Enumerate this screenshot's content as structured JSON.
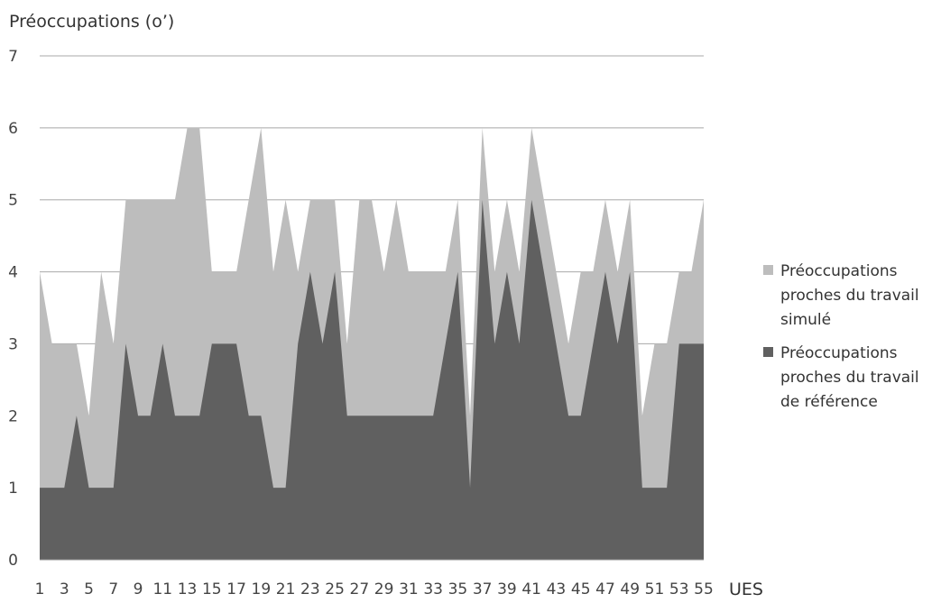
{
  "chart_data": {
    "type": "area",
    "stacked": false,
    "ylabel": "Préoccupations (o’)",
    "xlabel": "UES",
    "ylim": [
      0,
      7
    ],
    "yticks": [
      0,
      1,
      2,
      3,
      4,
      5,
      6,
      7
    ],
    "grid": true,
    "legend_position": "right",
    "x": [
      1,
      2,
      3,
      4,
      5,
      6,
      7,
      8,
      9,
      10,
      11,
      12,
      13,
      14,
      15,
      16,
      17,
      18,
      19,
      20,
      21,
      22,
      23,
      24,
      25,
      26,
      27,
      28,
      29,
      30,
      31,
      32,
      33,
      34,
      35,
      36,
      37,
      38,
      39,
      40,
      41,
      42,
      43,
      44,
      45,
      46,
      47,
      48,
      49,
      50,
      51,
      52,
      53,
      54,
      55
    ],
    "x_tick_labels": [
      "1",
      "3",
      "5",
      "7",
      "9",
      "11",
      "13",
      "15",
      "17",
      "19",
      "21",
      "23",
      "25",
      "27",
      "29",
      "31",
      "33",
      "35",
      "37",
      "39",
      "41",
      "43",
      "45",
      "47",
      "49",
      "51",
      "53",
      "55"
    ],
    "series": [
      {
        "name": "Préoccupations proches du travail simulé",
        "color": "#bdbdbd",
        "values": [
          4,
          3,
          3,
          3,
          2,
          4,
          3,
          5,
          5,
          5,
          5,
          5,
          6,
          6,
          4,
          4,
          4,
          5,
          6,
          4,
          5,
          4,
          5,
          5,
          5,
          3,
          5,
          5,
          4,
          5,
          4,
          4,
          4,
          4,
          5,
          2,
          6,
          4,
          5,
          4,
          6,
          5,
          4,
          3,
          4,
          4,
          5,
          4,
          5,
          2,
          3,
          3,
          4,
          4,
          5
        ]
      },
      {
        "name": "Préoccupations proches du travail de référence",
        "color": "#606060",
        "values": [
          1,
          1,
          1,
          2,
          1,
          1,
          1,
          3,
          2,
          2,
          3,
          2,
          2,
          2,
          3,
          3,
          3,
          2,
          2,
          1,
          1,
          3,
          4,
          3,
          4,
          2,
          2,
          2,
          2,
          2,
          2,
          2,
          2,
          3,
          4,
          1,
          5,
          3,
          4,
          3,
          5,
          4,
          3,
          2,
          2,
          3,
          4,
          3,
          4,
          1,
          1,
          1,
          3,
          3,
          3
        ]
      }
    ]
  }
}
